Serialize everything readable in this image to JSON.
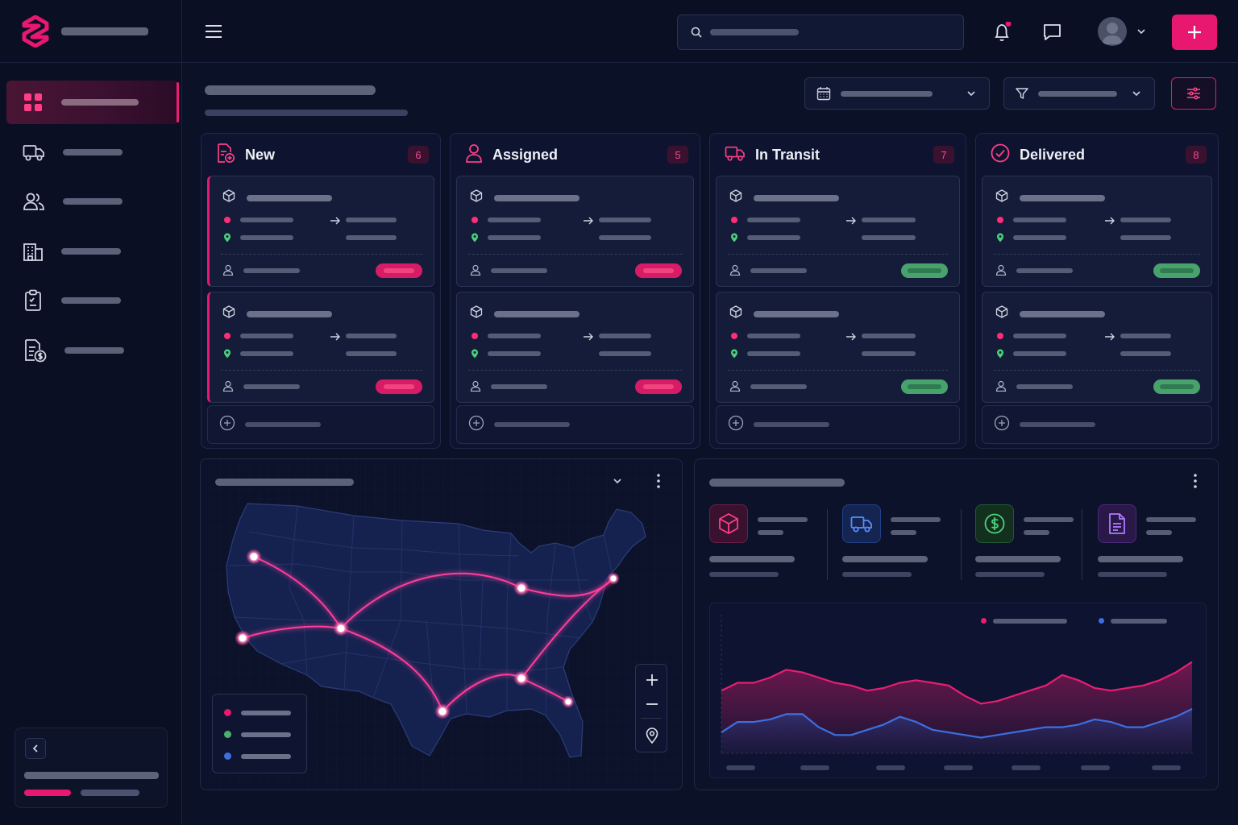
{
  "colors": {
    "accent": "#e8176f",
    "success": "#48a26c",
    "route": "#ff3e9a",
    "series_pink": "#e81e72",
    "series_blue": "#3d6fe0",
    "legend_green": "#4bb16a",
    "legend_blue": "#3d6fe0"
  },
  "sidebar": {
    "logo_icon": "logo-s-icon",
    "items": [
      {
        "icon": "dashboard-grid-icon",
        "active": true
      },
      {
        "icon": "truck-icon"
      },
      {
        "icon": "users-icon"
      },
      {
        "icon": "warehouse-icon"
      },
      {
        "icon": "clipboard-icon"
      },
      {
        "icon": "invoice-dollar-icon"
      }
    ]
  },
  "topbar": {
    "icons": [
      "menu-icon",
      "search-icon",
      "bell-icon",
      "chat-icon",
      "avatar",
      "plus-icon"
    ],
    "notification_dot": true
  },
  "kanban": {
    "columns": [
      {
        "title": "New",
        "count": "6",
        "icon": "new-order-icon",
        "status_color": "pink"
      },
      {
        "title": "Assigned",
        "count": "5",
        "icon": "user-icon",
        "status_color": "pink"
      },
      {
        "title": "In Transit",
        "count": "7",
        "icon": "truck-icon",
        "status_color": "green"
      },
      {
        "title": "Delivered",
        "count": "8",
        "icon": "check-circle-icon",
        "status_color": "green"
      }
    ]
  },
  "map": {
    "icons": [
      "chevron-down-icon",
      "more-vertical-icon",
      "zoom-in-icon",
      "zoom-out-icon",
      "location-pin-icon"
    ],
    "legend_colors": [
      "#e8176f",
      "#4bb16a",
      "#3d6fe0"
    ]
  },
  "stats": {
    "kpis": [
      {
        "icon": "package-icon",
        "color": "#e8176f"
      },
      {
        "icon": "truck-icon",
        "color": "#3d6fe0"
      },
      {
        "icon": "dollar-icon",
        "color": "#4bb16a"
      },
      {
        "icon": "document-icon",
        "color": "#9a5ae0"
      }
    ]
  },
  "chart_data": {
    "type": "area",
    "title": "",
    "xlabel": "",
    "ylabel": "",
    "grid": false,
    "legend": "top-right",
    "x": [
      0,
      1,
      2,
      3,
      4,
      5,
      6,
      7,
      8,
      9,
      10,
      11,
      12,
      13,
      14,
      15,
      16,
      17,
      18,
      19,
      20,
      21,
      22,
      23,
      24,
      25,
      26,
      27,
      28,
      29
    ],
    "ylim": [
      0,
      100
    ],
    "series": [
      {
        "color": "#e81e72",
        "values": [
          48,
          54,
          54,
          58,
          64,
          62,
          58,
          54,
          52,
          48,
          50,
          54,
          56,
          54,
          52,
          44,
          38,
          40,
          44,
          48,
          52,
          60,
          56,
          50,
          48,
          50,
          52,
          56,
          62,
          70
        ]
      },
      {
        "color": "#3d6fe0",
        "values": [
          16,
          24,
          24,
          26,
          30,
          30,
          20,
          14,
          14,
          18,
          22,
          28,
          24,
          18,
          16,
          14,
          12,
          14,
          16,
          18,
          20,
          20,
          22,
          26,
          24,
          20,
          20,
          24,
          28,
          34
        ]
      }
    ]
  }
}
